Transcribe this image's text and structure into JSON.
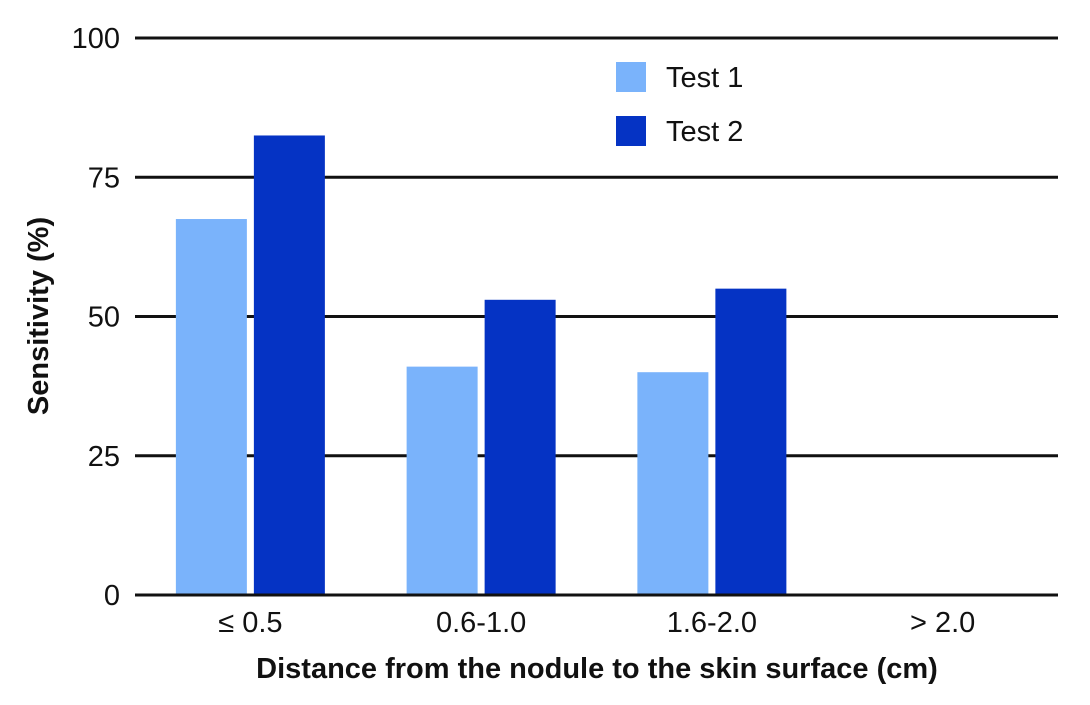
{
  "chart_data": {
    "type": "bar",
    "title": "",
    "xlabel": "Distance from the nodule to the skin surface (cm)",
    "ylabel": "Sensitivity (%)",
    "categories": [
      "≤ 0.5",
      "0.6-1.0",
      "1.6-2.0",
      "> 2.0"
    ],
    "series": [
      {
        "name": "Test 1",
        "color": "#7ab3fb",
        "values": [
          67.5,
          41,
          40,
          0
        ]
      },
      {
        "name": "Test 2",
        "color": "#0533c4",
        "values": [
          82.5,
          53,
          55,
          0
        ]
      }
    ],
    "ylim": [
      0,
      100
    ],
    "yticks": [
      0,
      25,
      50,
      75,
      100
    ],
    "grid": true,
    "legend_position": "top-right"
  }
}
